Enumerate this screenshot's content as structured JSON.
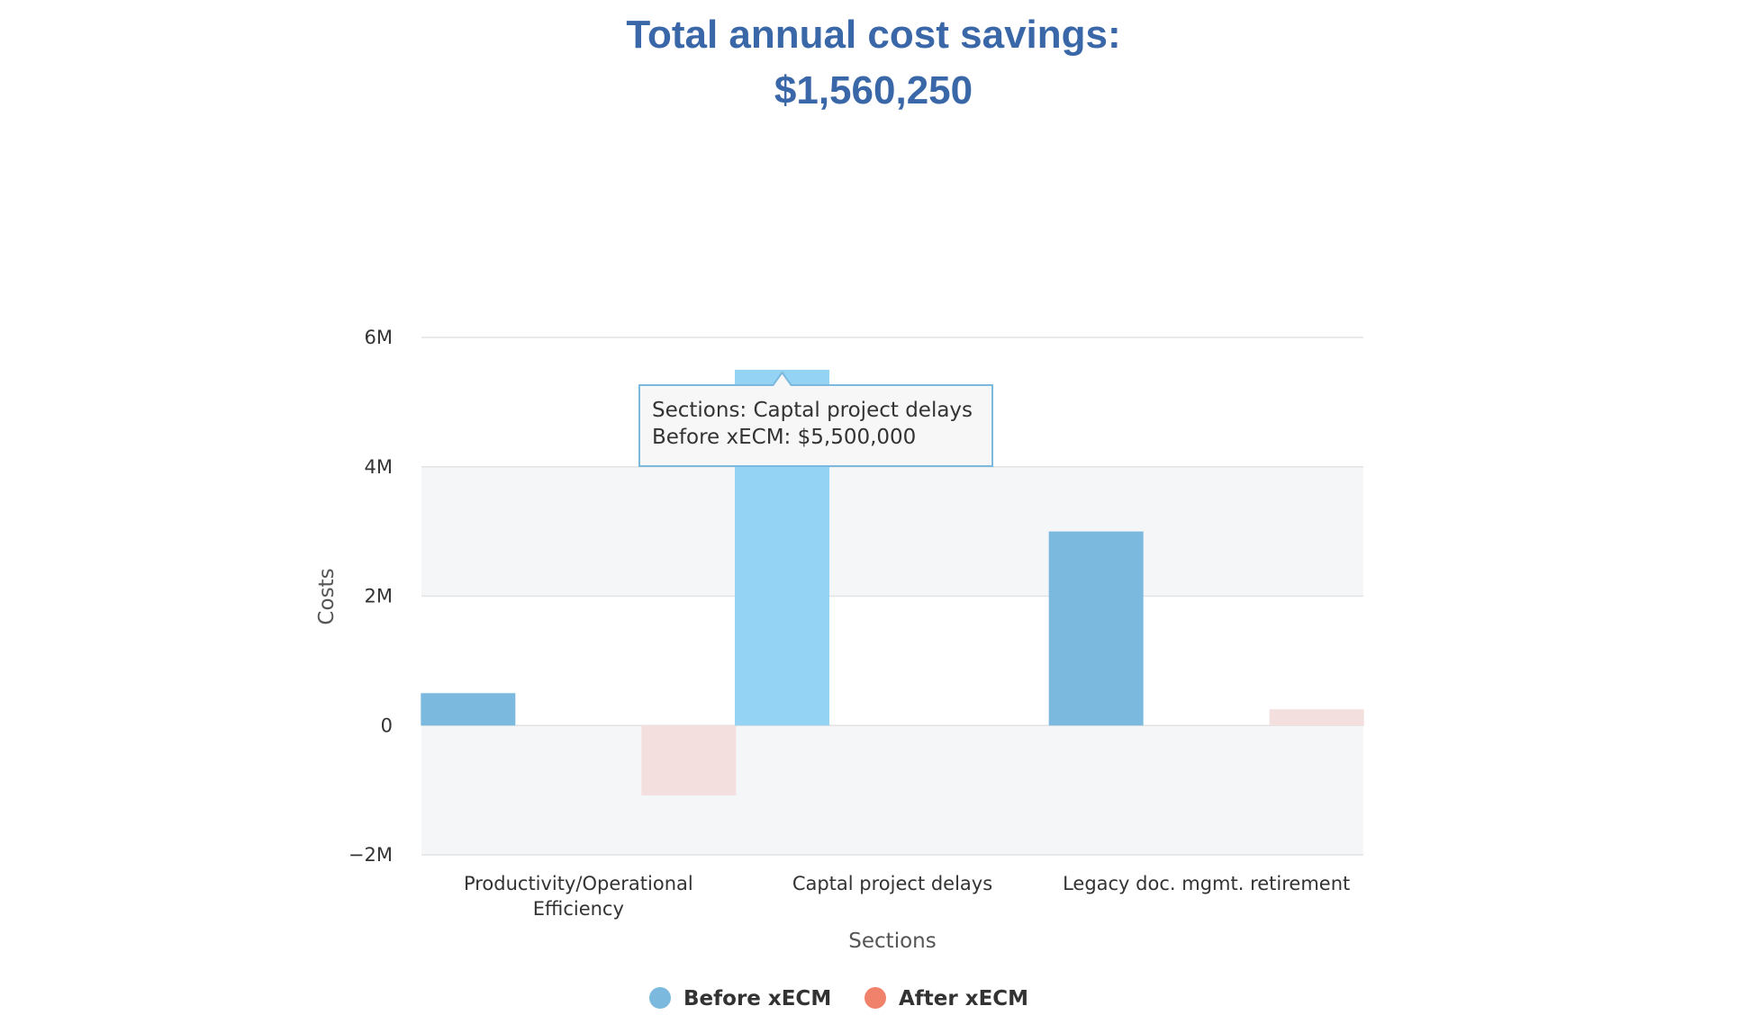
{
  "header": {
    "title_line1": "Total annual cost savings:",
    "title_line2": "$1,560,250"
  },
  "chart_data": {
    "type": "bar",
    "categories": [
      "Productivity/Operational Efficiency",
      "Captal project delays",
      "Legacy doc. mgmt. retirement"
    ],
    "category_label_lines": [
      [
        "Productivity/Operational",
        "Efficiency"
      ],
      [
        "Captal project delays"
      ],
      [
        "Legacy doc. mgmt. retirement"
      ]
    ],
    "series": [
      {
        "name": "Before xECM",
        "values": [
          500000,
          5500000,
          3000000
        ],
        "color": "#7cb9de",
        "hover_color": "#95d3f5"
      },
      {
        "name": "After xECM",
        "values": [
          -1080000,
          0,
          250000
        ],
        "color": "#f3e0de"
      }
    ],
    "legend_colors": [
      "#7cb9de",
      "#f0826b"
    ],
    "xlabel": "Sections",
    "ylabel": "Costs",
    "ylim": [
      -2000000,
      6000000
    ],
    "yticks": [
      {
        "value": -2000000,
        "label": "−2M"
      },
      {
        "value": 0,
        "label": "0"
      },
      {
        "value": 2000000,
        "label": "2M"
      },
      {
        "value": 4000000,
        "label": "4M"
      },
      {
        "value": 6000000,
        "label": "6M"
      }
    ],
    "grid": true,
    "legend_position": "bottom-center",
    "hovered": {
      "series": 0,
      "category": 1
    },
    "tooltip": {
      "line1": "Sections: Captal project delays",
      "line2": "Before xECM: $5,500,000"
    }
  }
}
